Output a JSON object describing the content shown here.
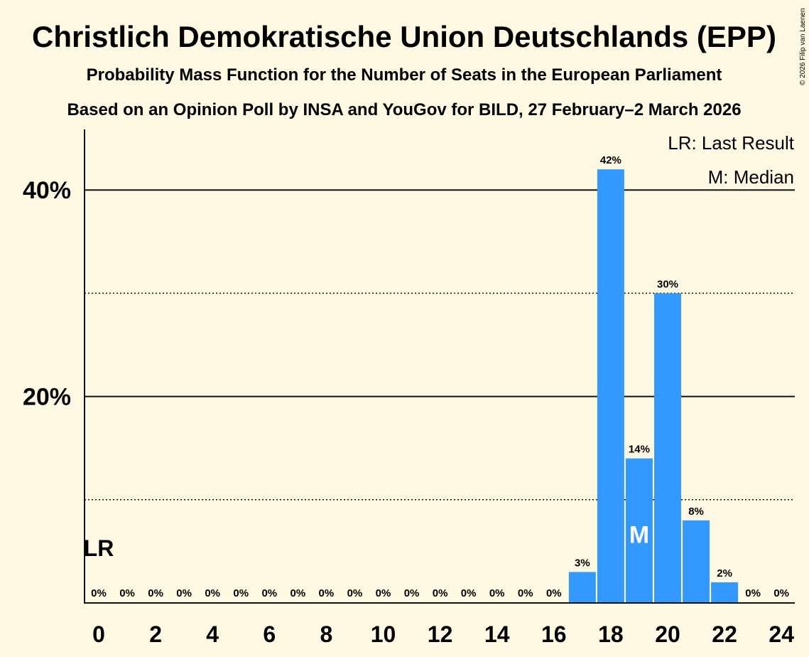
{
  "copyright": "© 2026 Filip van Laenen",
  "chart_data": {
    "type": "bar",
    "title": "Christlich Demokratische Union Deutschlands (EPP)",
    "subtitle": "Probability Mass Function for the Number of Seats in the European Parliament",
    "subtitle2": "Based on an Opinion Poll by INSA and YouGov for BILD, 27 February–2 March 2026",
    "legend": [
      "LR: Last Result",
      "M: Median"
    ],
    "legend_position": "top-right",
    "x": [
      0,
      1,
      2,
      3,
      4,
      5,
      6,
      7,
      8,
      9,
      10,
      11,
      12,
      13,
      14,
      15,
      16,
      17,
      18,
      19,
      20,
      21,
      22,
      23,
      24
    ],
    "values": [
      0,
      0,
      0,
      0,
      0,
      0,
      0,
      0,
      0,
      0,
      0,
      0,
      0,
      0,
      0,
      0,
      0,
      3,
      42,
      14,
      30,
      8,
      2,
      0,
      0
    ],
    "labels": [
      "0%",
      "0%",
      "0%",
      "0%",
      "0%",
      "0%",
      "0%",
      "0%",
      "0%",
      "0%",
      "0%",
      "0%",
      "0%",
      "0%",
      "0%",
      "0%",
      "0%",
      "3%",
      "42%",
      "14%",
      "30%",
      "8%",
      "2%",
      "0%",
      "0%"
    ],
    "x_tick_labels": [
      "0",
      "2",
      "4",
      "6",
      "8",
      "10",
      "12",
      "14",
      "16",
      "18",
      "20",
      "22",
      "24"
    ],
    "y_tick_labels": [
      "20%",
      "40%"
    ],
    "y_ticks": [
      20,
      40
    ],
    "y_minor_ticks": [
      10,
      30
    ],
    "ylim": [
      0,
      46
    ],
    "last_result": 0,
    "last_result_label": "LR",
    "median": 19,
    "median_label": "M",
    "bar_color": "#3399ff"
  }
}
